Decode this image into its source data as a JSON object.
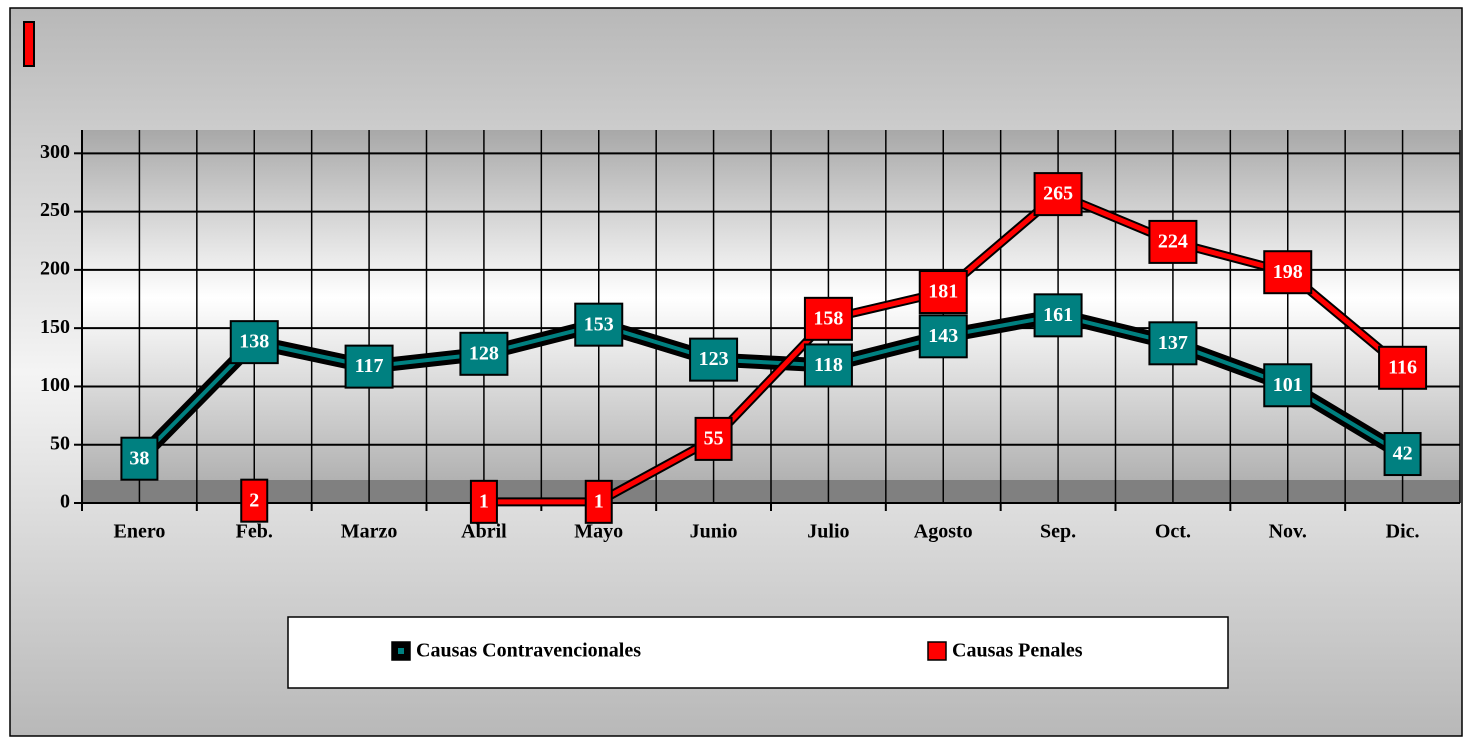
{
  "chart_data": {
    "type": "line",
    "categories": [
      "Enero",
      "Feb.",
      "Marzo",
      "Abril",
      "Mayo",
      "Junio",
      "Julio",
      "Agosto",
      "Sep.",
      "Oct.",
      "Nov.",
      "Dic."
    ],
    "series": [
      {
        "name": "Causas Contravencionales",
        "color": "#008080",
        "values": [
          38,
          138,
          117,
          128,
          153,
          123,
          118,
          143,
          161,
          137,
          101,
          42
        ]
      },
      {
        "name": "Causas Penales",
        "color": "#ff0000",
        "values": [
          null,
          2,
          null,
          1,
          1,
          55,
          158,
          181,
          265,
          224,
          198,
          116
        ]
      }
    ],
    "ylim": [
      0,
      320
    ],
    "yticks": [
      0,
      50,
      100,
      150,
      200,
      250,
      300
    ],
    "grid": true,
    "legend": "bottom"
  }
}
